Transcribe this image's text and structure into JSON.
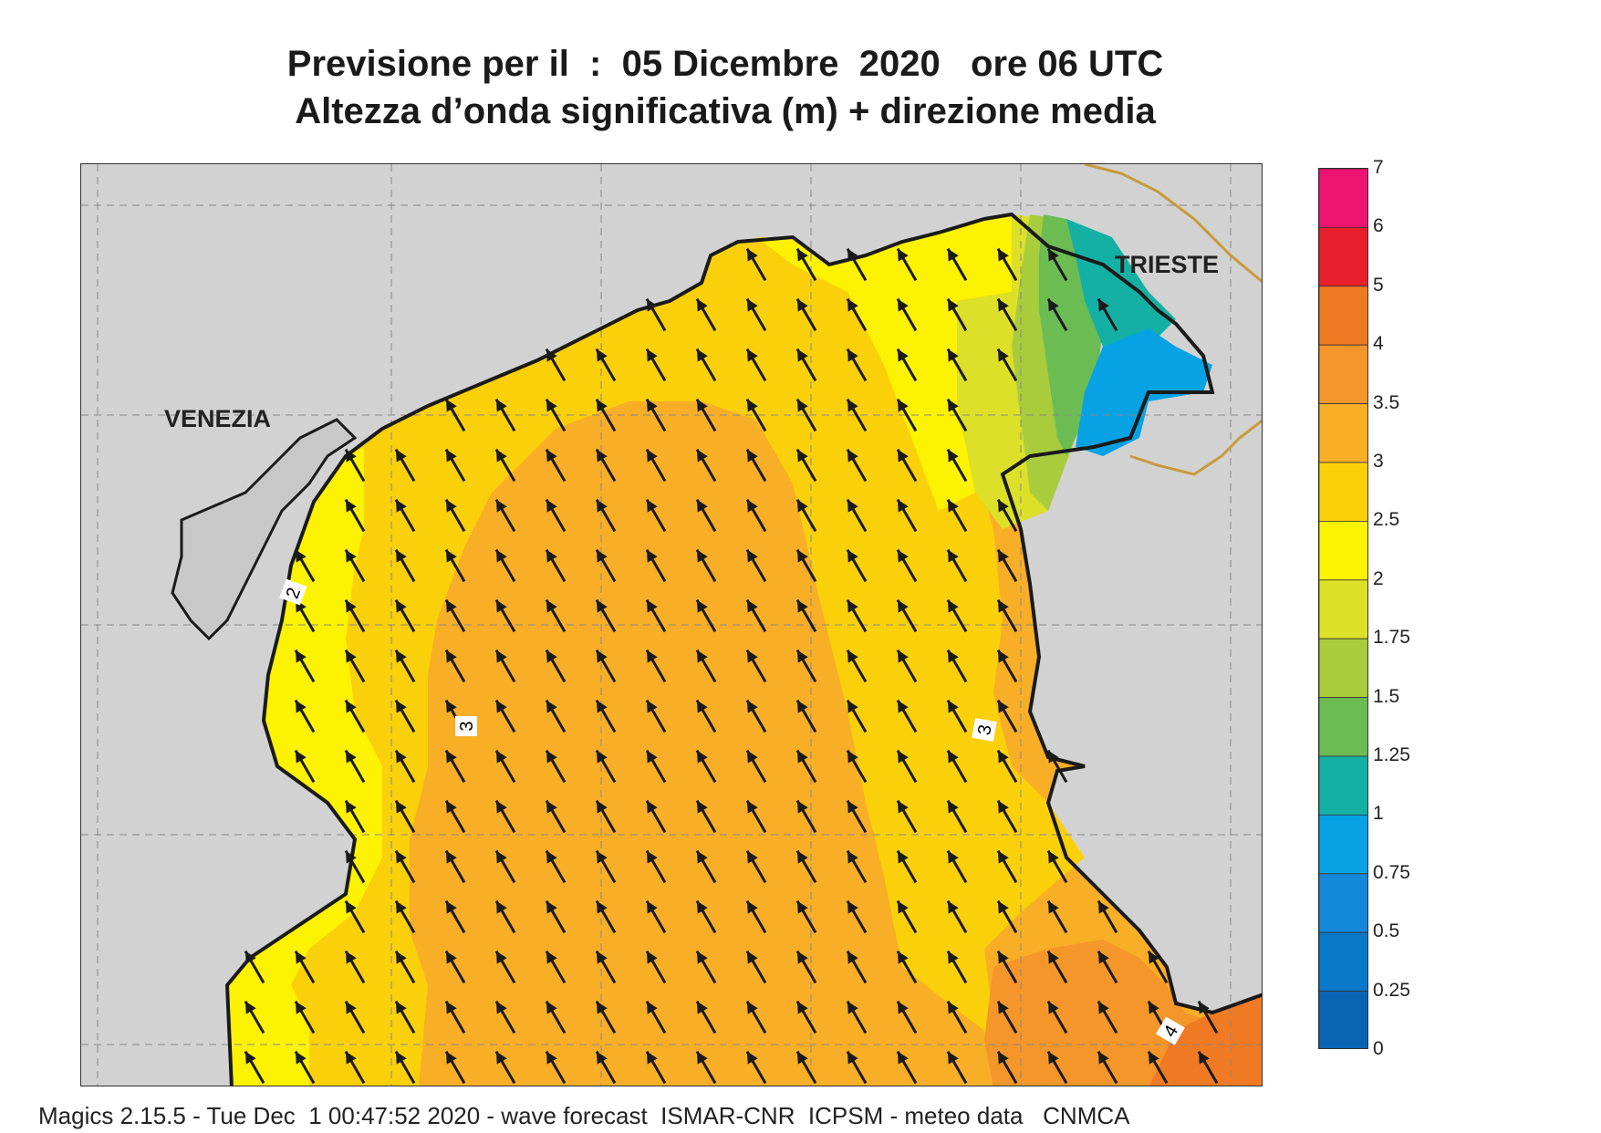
{
  "title": {
    "line1": "Previsione per il  :  05 Dicembre  2020   ore 06 UTC",
    "line2": "Altezza d’onda significativa (m) + direzione media"
  },
  "labels": {
    "venezia": "VENEZIA",
    "trieste": "TRIESTE"
  },
  "contour_labels": [
    "2",
    "3",
    "3",
    "4"
  ],
  "legend": {
    "unit": "m",
    "ticks": [
      "7",
      "6",
      "5",
      "4",
      "3.5",
      "3",
      "2.5",
      "2",
      "1.75",
      "1.5",
      "1.25",
      "1",
      "0.75",
      "0.5",
      "0.25",
      "0"
    ],
    "colors": [
      "#ec1470",
      "#e8202c",
      "#f07a24",
      "#f4962a",
      "#f8ae26",
      "#fad00a",
      "#fdf202",
      "#dce028",
      "#a8cc3c",
      "#6cbc54",
      "#14b0a4",
      "#06a2e4",
      "#1488d8",
      "#0a78c8",
      "#0a64b4"
    ]
  },
  "field_colors": {
    "land": "#d2d2d2",
    "sea_ge_3": "#f8ae26",
    "sea_2_5_to_3": "#fad00a",
    "sea_2_to_2_5": "#fdf202",
    "sea_ge_3_5": "#f4962a",
    "sea_1_75": "#dce028",
    "sea_1_5": "#a8cc3c",
    "sea_1_25": "#6cbc54",
    "sea_1": "#14b0a4",
    "sea_0_75": "#06a2e4",
    "coast": "#1a1a1a",
    "border": "#c89a3a"
  },
  "arrows": {
    "mean_direction_deg": 330,
    "color": "#1a1a1a"
  },
  "footer": "Magics 2.15.5 - Tue Dec  1 00:47:52 2020 - wave forecast  ISMAR-CNR  ICPSM - meteo data   CNMCA"
}
